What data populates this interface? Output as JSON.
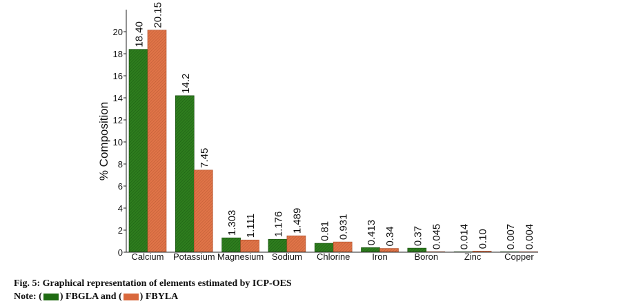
{
  "chart_data": {
    "type": "bar",
    "ylabel": "% Composition",
    "xlabel": "",
    "ylim": [
      0,
      22
    ],
    "yticks": [
      "0",
      "2",
      "4",
      "6",
      "8",
      "10",
      "12",
      "14",
      "16",
      "18",
      "20"
    ],
    "categories": [
      "Calcium",
      "Potassium",
      "Magnesium",
      "Sodium",
      "Chlorine",
      "Iron",
      "Boron",
      "Zinc",
      "Copper"
    ],
    "series": [
      {
        "name": "FBGLA",
        "color": "#2e7d1e",
        "values": [
          18.4,
          14.2,
          1.303,
          1.176,
          0.81,
          0.413,
          0.37,
          0.014,
          0.007
        ],
        "labels": [
          "18.40",
          "14.2",
          "1.303",
          "1.176",
          "0.81",
          "0.413",
          "0.37",
          "0.014",
          "0.007"
        ]
      },
      {
        "name": "FBYLA",
        "color": "#e07448",
        "values": [
          20.15,
          7.45,
          1.111,
          1.489,
          0.931,
          0.34,
          0.045,
          0.1,
          0.004
        ],
        "labels": [
          "20.15",
          "7.45",
          "1.111",
          "1.489",
          "0.931",
          "0.34",
          "0.045",
          "0.10",
          "0.004"
        ]
      }
    ],
    "grid": false,
    "legend": "caption"
  },
  "caption": {
    "line1": "Fig. 5: Graphical representation of elements estimated by ICP-OES",
    "note_prefix": "Note: (",
    "note_mid": ") FBGLA and (",
    "note_suffix": ") FBYLA"
  }
}
